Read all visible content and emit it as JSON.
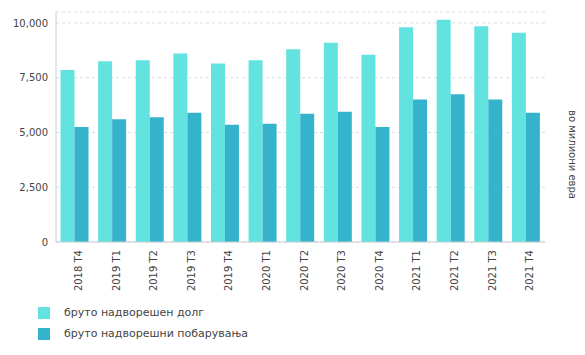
{
  "chart_data": {
    "type": "bar",
    "y_label": "во милиони евра",
    "categories": [
      "2018 T4",
      "2019 T1",
      "2019 T2",
      "2019 T3",
      "2019 T4",
      "2020 T1",
      "2020 T2",
      "2020 T3",
      "2020 T4",
      "2021 T1",
      "2021 T2",
      "2021 T3",
      "2021 T4"
    ],
    "series": [
      {
        "name": "бруто надворешен долг",
        "color": "#62e3e0",
        "values": [
          7850,
          8250,
          8300,
          8600,
          8150,
          8300,
          8800,
          9100,
          8550,
          9800,
          10150,
          9850,
          9550
        ]
      },
      {
        "name": "бруто надворешни побарувања",
        "color": "#36b3cc",
        "values": [
          5250,
          5600,
          5700,
          5900,
          5350,
          5400,
          5850,
          5950,
          5250,
          6500,
          6750,
          6500,
          5900
        ]
      }
    ],
    "ylim": [
      0,
      10500
    ],
    "yticks": [
      0,
      {
        "value": 2500,
        "label": "2,500"
      },
      {
        "value": 5000,
        "label": "5,000"
      },
      {
        "value": 7500,
        "label": "7,500"
      },
      {
        "value": 10000,
        "label": "10,000"
      }
    ],
    "grid": true,
    "legend": "bottom-left"
  }
}
